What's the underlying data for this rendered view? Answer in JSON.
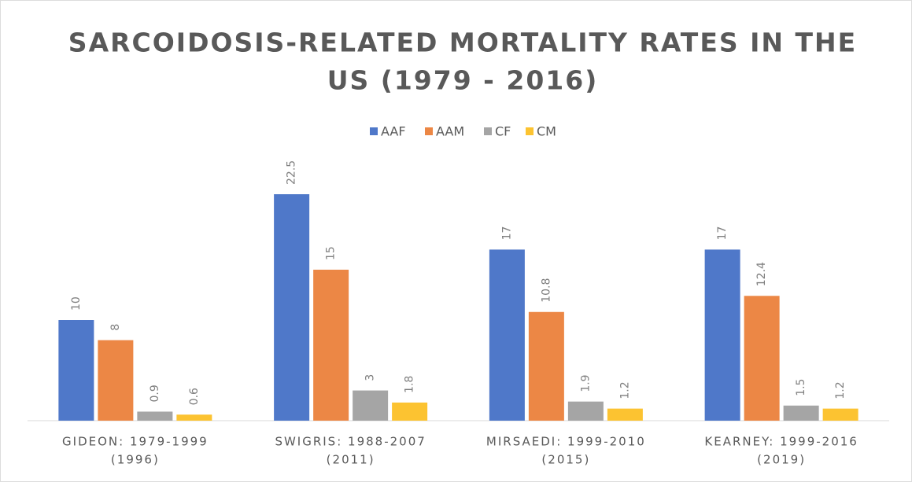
{
  "chart_data": {
    "type": "bar",
    "title": [
      "SARCOIDOSIS-RELATED MORTALITY RATES IN THE",
      "US (1979 - 2016)"
    ],
    "categories": [
      [
        "GIDEON: 1979-1999",
        "(1996)"
      ],
      [
        "SWIGRIS: 1988-2007",
        "(2011)"
      ],
      [
        "MIRSAEDI: 1999-2010",
        "(2015)"
      ],
      [
        "KEARNEY: 1999-2016",
        "(2019)"
      ]
    ],
    "series": [
      {
        "name": "AAF",
        "color": "#4f78c9",
        "values": [
          10,
          22.5,
          17,
          17
        ]
      },
      {
        "name": "AAM",
        "color": "#ec8745",
        "values": [
          8,
          15,
          10.8,
          12.4
        ]
      },
      {
        "name": "CF",
        "color": "#a5a5a5",
        "values": [
          0.9,
          3,
          1.9,
          1.5
        ]
      },
      {
        "name": "CM",
        "color": "#fcc331",
        "values": [
          0.6,
          1.8,
          1.2,
          1.2
        ]
      }
    ],
    "legend": "top"
  }
}
